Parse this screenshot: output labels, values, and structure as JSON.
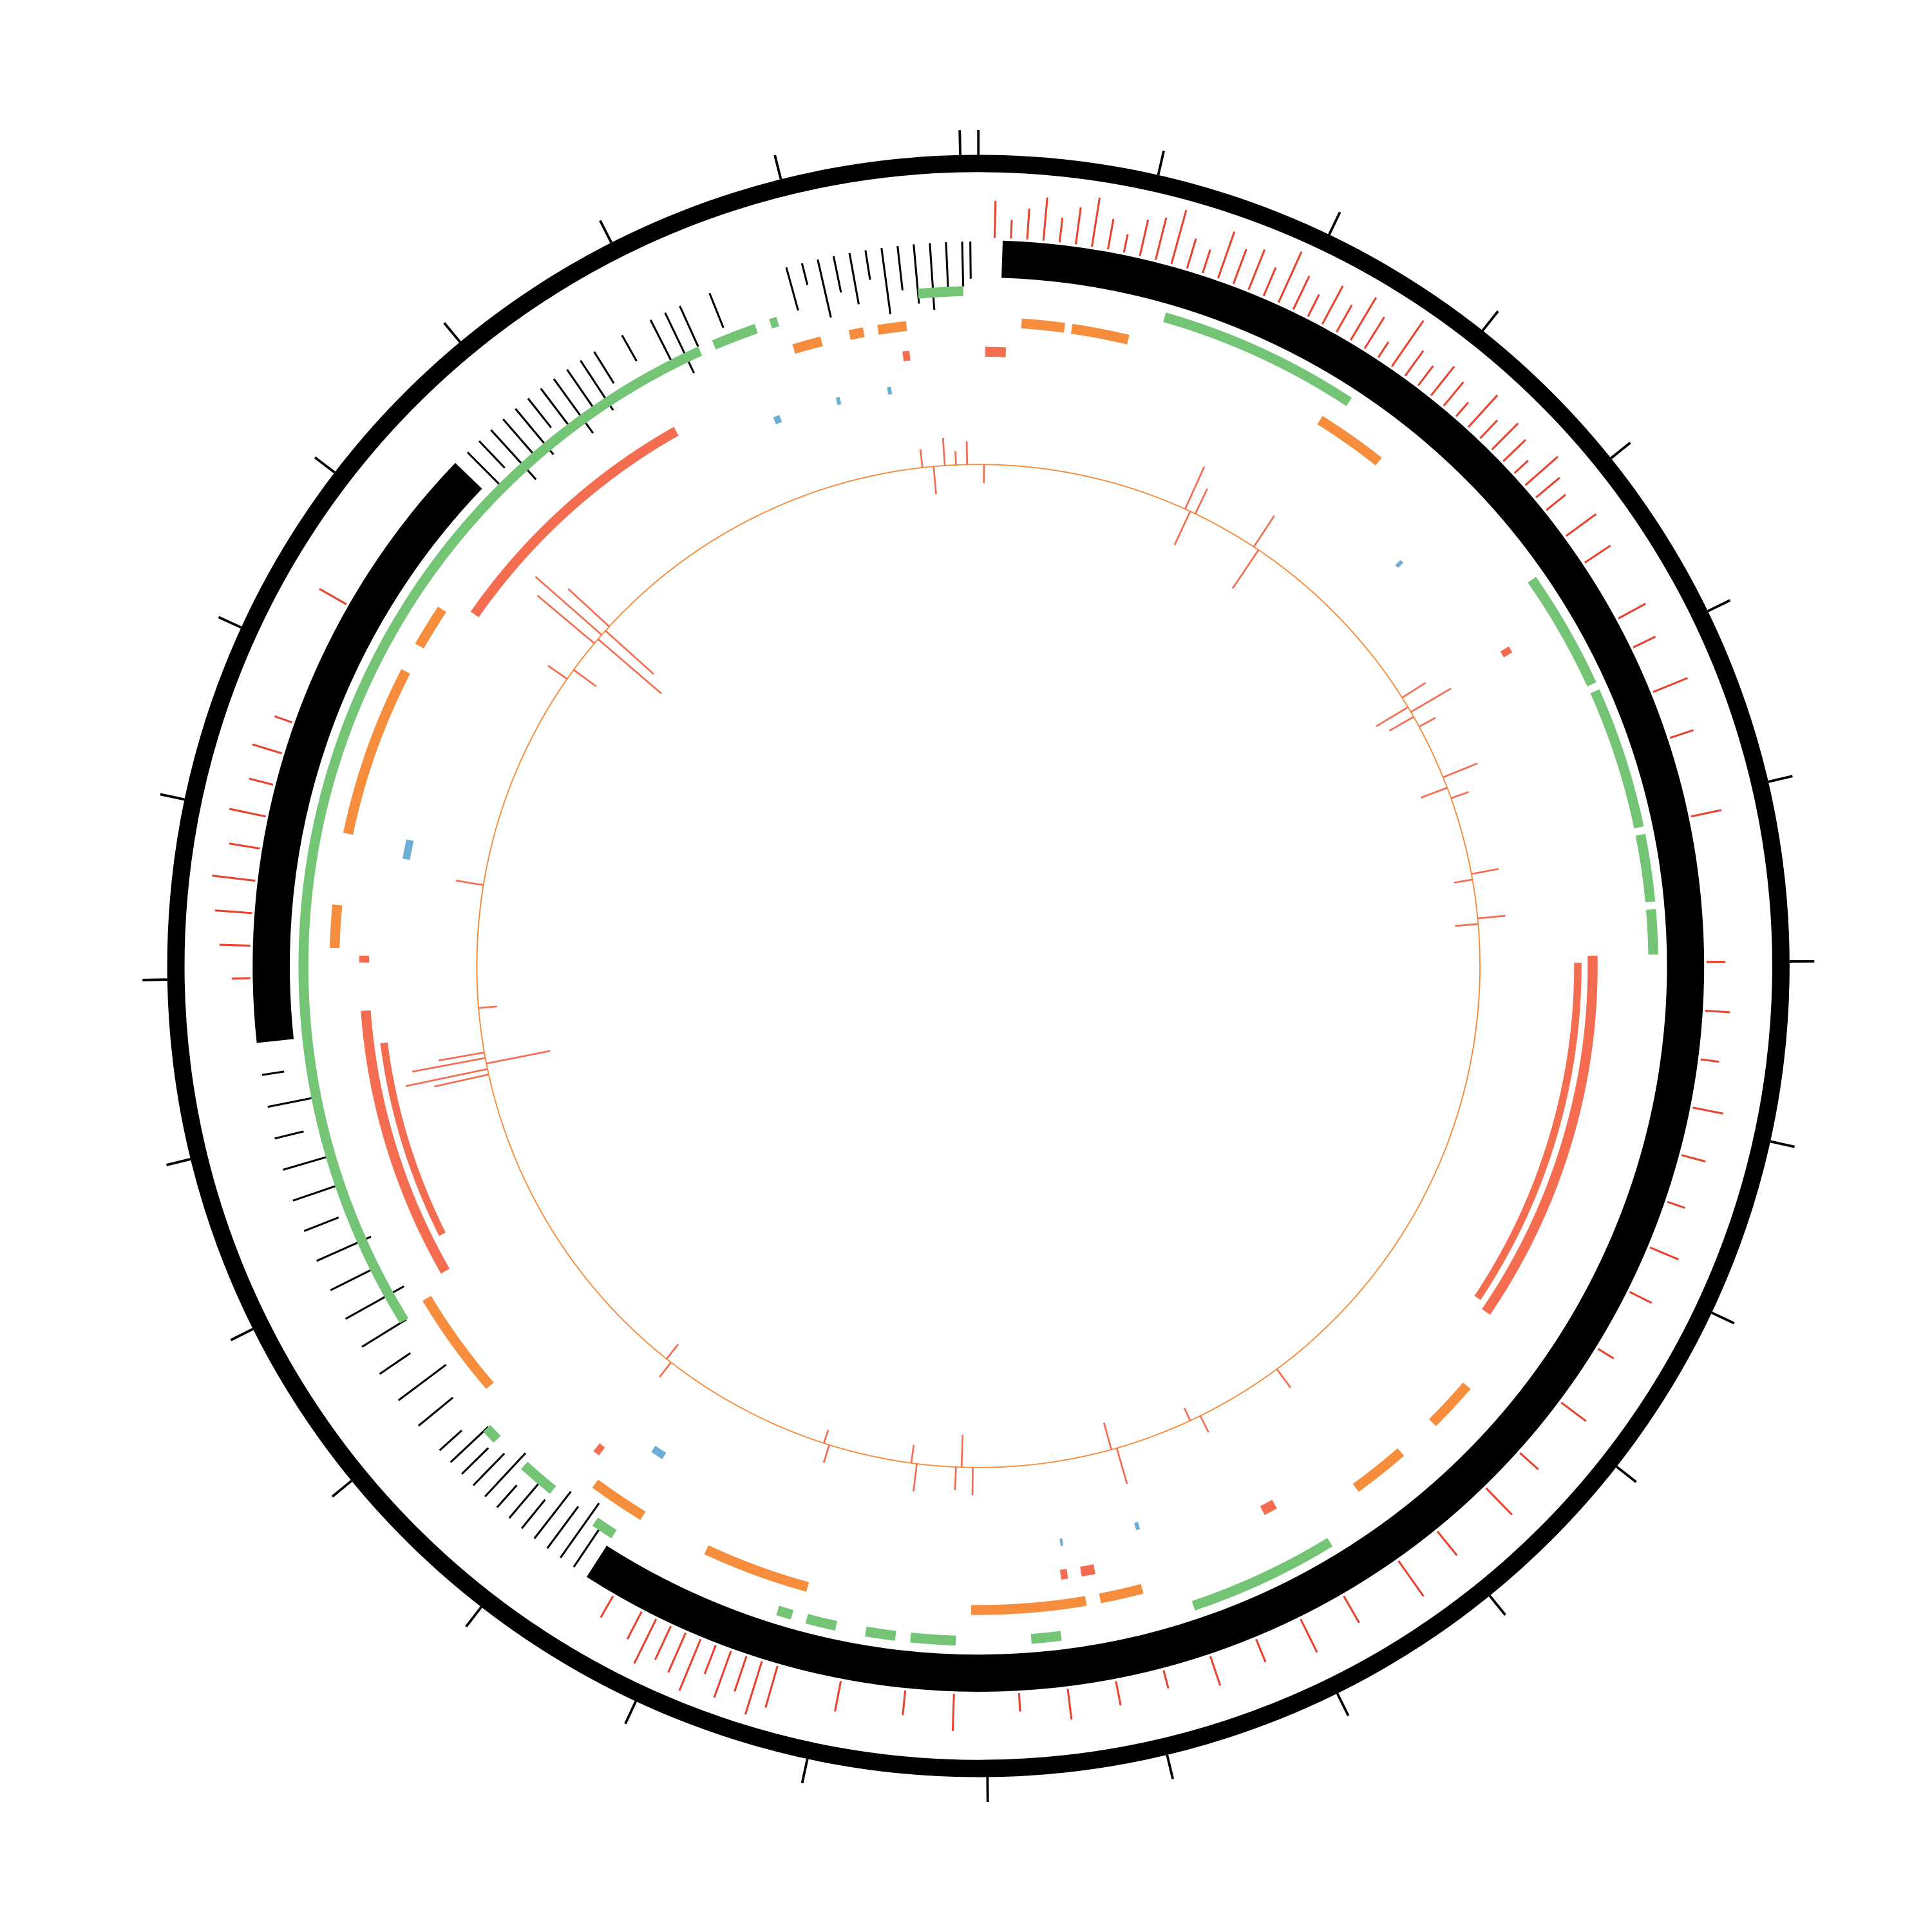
{
  "chart_data": {
    "type": "circos",
    "xlim": [
      0,
      28.1
    ],
    "xticks": [
      0,
      1,
      2,
      3,
      4,
      5,
      6,
      7,
      8,
      9,
      10,
      11,
      12,
      13,
      14,
      15,
      16,
      17,
      18,
      19,
      20,
      21,
      22,
      23,
      24,
      25,
      26,
      27,
      28
    ],
    "tracks": [
      {
        "type": "histogram",
        "direction": "out",
        "color": "#e8432e",
        "ylim": [
          0,
          1
        ],
        "x": [
          0.1,
          0.2,
          0.3,
          0.4,
          0.5,
          0.6,
          0.7,
          0.8,
          0.9,
          1.0,
          1.1,
          1.2,
          1.3,
          1.4,
          1.5,
          1.6,
          1.7,
          1.8,
          1.9,
          2.0,
          2.1,
          2.2,
          2.3,
          2.4,
          2.5,
          2.6,
          2.7,
          2.8,
          2.9,
          3.0,
          3.1,
          3.2,
          3.3,
          3.4,
          3.5,
          3.6,
          3.7,
          3.8,
          3.9,
          4.0,
          4.2,
          4.4,
          4.8,
          5.0,
          5.3,
          5.6,
          6.1,
          7.0,
          7.3,
          7.6,
          7.9,
          8.2,
          8.5,
          8.8,
          9.1,
          9.5,
          9.9,
          10.3,
          10.6,
          11.0,
          11.3,
          11.7,
          12.0,
          12.3,
          12.6,
          12.9,
          13.2,
          13.5,
          13.8,
          14.2,
          14.5,
          14.9,
          15.3,
          15.4,
          15.5,
          15.6,
          15.7,
          15.8,
          15.9,
          16.0,
          16.1,
          16.2,
          16.4,
          21.0,
          21.2,
          21.4,
          21.6,
          21.8,
          22.0,
          22.2,
          22.4,
          22.6,
          23.4
        ],
        "values": [
          0.6,
          0.3,
          0.5,
          0.7,
          0.4,
          0.6,
          0.8,
          0.5,
          0.3,
          0.6,
          0.7,
          0.9,
          0.5,
          0.4,
          0.8,
          0.6,
          0.7,
          0.5,
          0.9,
          0.6,
          0.4,
          0.7,
          0.5,
          0.8,
          0.6,
          0.3,
          0.9,
          0.5,
          0.4,
          0.6,
          0.5,
          0.3,
          0.7,
          0.4,
          0.6,
          0.5,
          0.3,
          0.7,
          0.5,
          0.4,
          0.6,
          0.5,
          0.5,
          0.4,
          0.6,
          0.4,
          0.5,
          0.3,
          0.4,
          0.3,
          0.5,
          0.4,
          0.3,
          0.5,
          0.4,
          0.3,
          0.5,
          0.4,
          0.6,
          0.5,
          0.7,
          0.5,
          0.6,
          0.4,
          0.5,
          0.3,
          0.4,
          0.5,
          0.3,
          0.6,
          0.4,
          0.5,
          0.7,
          0.9,
          0.6,
          0.8,
          0.5,
          0.9,
          0.7,
          0.6,
          0.8,
          0.5,
          0.4,
          0.3,
          0.5,
          0.6,
          0.7,
          0.5,
          0.6,
          0.4,
          0.5,
          0.3,
          0.5
        ]
      },
      {
        "type": "arcs",
        "color": "#000000",
        "segments": [
          [
            0.15,
            16.6
          ],
          [
            20.6,
            24.5
          ]
        ]
      },
      {
        "type": "histogram",
        "direction": "in",
        "color": "#000000",
        "ylim": [
          0,
          1
        ],
        "x": [
          16.7,
          16.8,
          16.9,
          17.0,
          17.1,
          17.2,
          17.3,
          17.4,
          17.5,
          17.6,
          17.7,
          17.8,
          18.0,
          18.2,
          18.4,
          18.6,
          18.8,
          19.0,
          19.2,
          19.4,
          19.6,
          19.8,
          20.0,
          20.2,
          20.4,
          24.6,
          24.7,
          24.8,
          24.9,
          25.0,
          25.1,
          25.2,
          25.3,
          25.4,
          25.5,
          25.6,
          25.8,
          26.0,
          26.1,
          26.2,
          26.4,
          26.9,
          27.0,
          27.1,
          27.2,
          27.3,
          27.4,
          27.5,
          27.6,
          27.7,
          27.8,
          27.9,
          28.0,
          28.05
        ],
        "values": [
          0.6,
          0.9,
          0.7,
          0.8,
          0.5,
          0.7,
          0.4,
          0.8,
          0.6,
          0.5,
          0.7,
          0.4,
          0.6,
          0.8,
          0.5,
          0.7,
          0.9,
          0.6,
          0.8,
          0.5,
          0.7,
          0.6,
          0.4,
          0.6,
          0.3,
          0.7,
          0.5,
          0.9,
          0.6,
          0.8,
          0.5,
          0.7,
          0.9,
          0.6,
          0.8,
          0.5,
          0.4,
          0.7,
          0.9,
          0.6,
          0.5,
          0.6,
          0.3,
          0.8,
          0.5,
          0.7,
          0.4,
          0.9,
          0.6,
          0.8,
          0.9,
          0.7,
          0.6,
          0.5
        ]
      },
      {
        "type": "arcs",
        "color": "#74c476",
        "segments": [
          [
            27.7,
            28.0
          ],
          [
            1.25,
            2.6
          ],
          [
            4.3,
            5.1
          ],
          [
            5.15,
            6.1
          ],
          [
            6.15,
            6.6
          ],
          [
            6.65,
            6.95
          ],
          [
            11.6,
            12.6
          ],
          [
            13.5,
            13.7
          ],
          [
            14.2,
            14.5
          ],
          [
            14.6,
            14.8
          ],
          [
            15.0,
            15.2
          ],
          [
            15.3,
            15.4
          ],
          [
            16.6,
            16.75
          ],
          [
            17.1,
            17.35
          ],
          [
            17.6,
            17.7
          ],
          [
            18.6,
            26.2
          ],
          [
            26.3,
            26.6
          ],
          [
            26.7,
            26.75
          ]
        ]
      },
      {
        "type": "arcs",
        "color": "#f58d3c",
        "segments": [
          [
            26.8,
            27.0
          ],
          [
            27.2,
            27.3
          ],
          [
            27.4,
            27.6
          ],
          [
            0.3,
            0.6
          ],
          [
            0.65,
            1.05
          ],
          [
            2.5,
            3.0
          ],
          [
            10.2,
            10.55
          ],
          [
            10.85,
            11.25
          ],
          [
            12.9,
            13.2
          ],
          [
            13.3,
            14.1
          ],
          [
            15.25,
            16.0
          ],
          [
            16.5,
            16.9
          ],
          [
            17.9,
            18.65
          ],
          [
            21.2,
            21.5
          ],
          [
            22.0,
            23.2
          ],
          [
            23.4,
            23.7
          ]
        ]
      },
      {
        "type": "arcs",
        "color": "#f46d50",
        "segments": [
          [
            23.8,
            25.8
          ],
          [
            18.75,
            20.75
          ],
          [
            6.95,
            9.7
          ],
          [
            0.05,
            0.2
          ],
          [
            27.55,
            27.6
          ],
          [
            17.0,
            17.05
          ],
          [
            13.2,
            13.3
          ],
          [
            13.4,
            13.45
          ],
          [
            11.8,
            11.9
          ],
          [
            4.6,
            4.65
          ],
          [
            21.1,
            21.15
          ]
        ]
      },
      {
        "type": "arcs",
        "color": "#f46d50",
        "segments": [
          [
            7.0,
            9.65
          ],
          [
            19.0,
            20.5
          ]
        ]
      },
      {
        "type": "arcs",
        "color": "#6baed6",
        "segments": [
          [
            21.9,
            22.05
          ],
          [
            16.6,
            16.7
          ],
          [
            26.5,
            26.55
          ],
          [
            27.0,
            27.03
          ],
          [
            27.4,
            27.43
          ],
          [
            3.6,
            3.63
          ],
          [
            13.4,
            13.42
          ],
          [
            12.8,
            12.83
          ]
        ]
      },
      {
        "type": "spikes",
        "color": "#f46d50",
        "baseline_color": "#f58d3c",
        "ylim": [
          -1,
          1
        ],
        "x": [
          27.6,
          27.7,
          27.8,
          27.9,
          28.0,
          0.05,
          1.9,
          1.95,
          2.0,
          2.6,
          2.65,
          4.5,
          4.6,
          4.65,
          4.7,
          4.8,
          5.3,
          5.4,
          5.5,
          6.2,
          6.25,
          6.6,
          6.65,
          11.2,
          12.0,
          12.1,
          12.8,
          12.85,
          14.1,
          14.2,
          14.25,
          14.6,
          14.65,
          15.4,
          15.45,
          17.0,
          17.05,
          20.1,
          20.15,
          20.2,
          20.25,
          20.3,
          20.7,
          21.8,
          23.8,
          23.9,
          24.2,
          24.25,
          24.3,
          24.35,
          24.4
        ],
        "values": [
          0.2,
          -0.3,
          0.3,
          0.15,
          0.25,
          -0.2,
          0.5,
          -0.4,
          0.3,
          0.4,
          -0.5,
          0.3,
          -0.4,
          0.5,
          -0.3,
          0.2,
          0.4,
          -0.3,
          0.2,
          0.3,
          -0.2,
          0.3,
          -0.25,
          0.25,
          0.2,
          -0.15,
          0.4,
          -0.3,
          0.3,
          -0.35,
          0.25,
          0.3,
          -0.2,
          0.2,
          -0.15,
          0.2,
          -0.2,
          0.6,
          0.9,
          -0.7,
          0.8,
          0.5,
          -0.2,
          0.3,
          0.25,
          -0.3,
          0.8,
          -0.9,
          0.95,
          -0.7,
          0.6
        ]
      }
    ]
  }
}
